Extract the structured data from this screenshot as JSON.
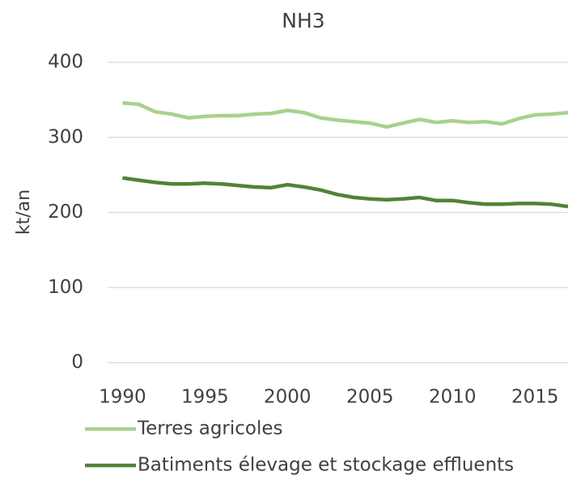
{
  "chart_data": {
    "type": "line",
    "title": "NH3",
    "y_label": "kt/an",
    "x": [
      1990,
      1991,
      1992,
      1993,
      1994,
      1995,
      1996,
      1997,
      1998,
      1999,
      2000,
      2001,
      2002,
      2003,
      2004,
      2005,
      2006,
      2007,
      2008,
      2009,
      2010,
      2011,
      2012,
      2013,
      2014,
      2015,
      2016,
      2017
    ],
    "series": [
      {
        "name": "Terres agricoles",
        "color": "#a9d18e",
        "values": [
          346,
          344,
          334,
          331,
          326,
          328,
          329,
          329,
          331,
          332,
          336,
          333,
          326,
          323,
          321,
          319,
          314,
          319,
          324,
          320,
          322,
          320,
          321,
          318,
          325,
          330,
          331,
          333
        ]
      },
      {
        "name": "Batiments élevage et stockage effluents",
        "color": "#548235",
        "values": [
          246,
          243,
          240,
          238,
          238,
          239,
          238,
          236,
          234,
          233,
          237,
          234,
          230,
          224,
          220,
          218,
          217,
          218,
          220,
          216,
          216,
          213,
          211,
          211,
          212,
          212,
          211,
          208
        ]
      }
    ],
    "xlim": [
      1989.1,
      2017
    ],
    "xticks": [
      1990,
      1995,
      2000,
      2005,
      2010,
      2015
    ],
    "ylim": [
      0,
      400
    ],
    "yticks": [
      0,
      100,
      200,
      300,
      400
    ],
    "grid": true,
    "legend": "bottom"
  }
}
